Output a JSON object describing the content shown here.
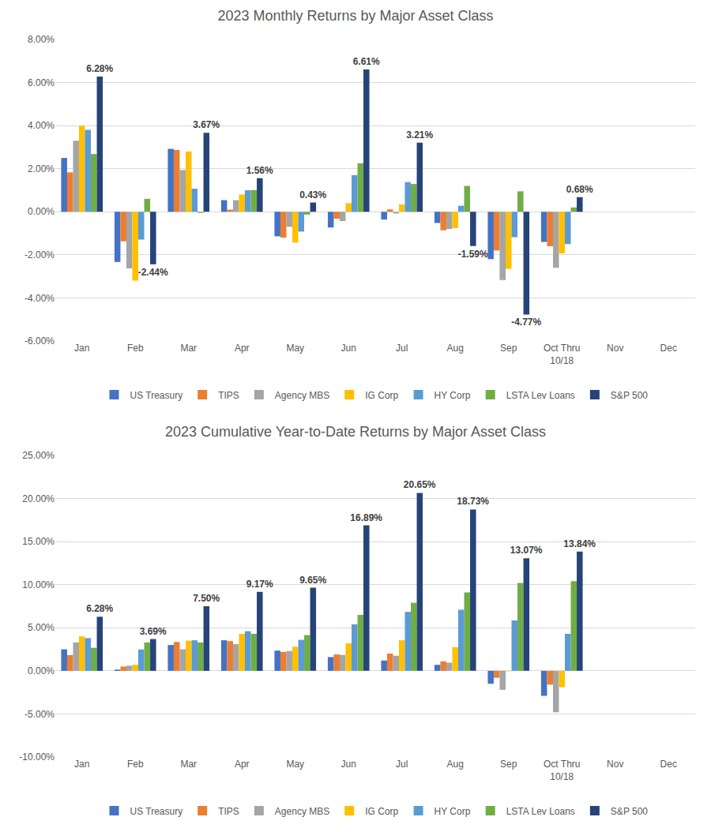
{
  "chart_data": [
    {
      "type": "bar",
      "title": "2023 Monthly Returns by Major Asset Class",
      "categories": [
        "Jan",
        "Feb",
        "Mar",
        "Apr",
        "May",
        "Jun",
        "Jul",
        "Aug",
        "Sep",
        "Oct Thru\n10/18",
        "Nov",
        "Dec"
      ],
      "ylim": [
        -6,
        8
      ],
      "yticks": [
        {
          "value": -6,
          "label": "-6.00%"
        },
        {
          "value": -4,
          "label": "-4.00%"
        },
        {
          "value": -2,
          "label": "-2.00%"
        },
        {
          "value": 0,
          "label": "0.00%"
        },
        {
          "value": 2,
          "label": "2.00%"
        },
        {
          "value": 4,
          "label": "4.00%"
        },
        {
          "value": 6,
          "label": "6.00%"
        },
        {
          "value": 8,
          "label": "8.00%"
        }
      ],
      "grid": true,
      "legend": "bottom",
      "series": [
        {
          "name": "US Treasury",
          "color": "#4472C4",
          "values": [
            2.5,
            -2.33,
            2.92,
            0.54,
            -1.14,
            -0.73,
            -0.36,
            -0.52,
            -2.2,
            -1.4,
            null,
            null
          ]
        },
        {
          "name": "TIPS",
          "color": "#ED7D31",
          "values": [
            1.83,
            -1.37,
            2.87,
            0.1,
            -1.2,
            -0.32,
            0.11,
            -0.86,
            -1.8,
            -1.6,
            null,
            null
          ]
        },
        {
          "name": "Agency MBS",
          "color": "#A5A5A5",
          "values": [
            3.3,
            -2.63,
            1.94,
            0.54,
            -0.7,
            -0.43,
            -0.08,
            -0.8,
            -3.17,
            -2.6,
            null,
            null
          ]
        },
        {
          "name": "IG Corp",
          "color": "#FFC000",
          "values": [
            4.0,
            -3.2,
            2.8,
            0.8,
            -1.43,
            0.4,
            0.34,
            -0.76,
            -2.65,
            -1.93,
            null,
            null
          ]
        },
        {
          "name": "HY Corp",
          "color": "#5B9BD5",
          "values": [
            3.8,
            -1.29,
            1.07,
            1.0,
            -0.92,
            1.7,
            1.38,
            0.28,
            -1.18,
            -1.5,
            null,
            null
          ]
        },
        {
          "name": "LSTA Lev Loans",
          "color": "#70AD47",
          "values": [
            2.68,
            0.6,
            -0.05,
            1.01,
            -0.13,
            2.25,
            1.29,
            1.2,
            0.95,
            0.2,
            null,
            null
          ]
        },
        {
          "name": "S&P 500",
          "color": "#264478",
          "values": [
            6.28,
            -2.44,
            3.67,
            1.56,
            0.43,
            6.61,
            3.21,
            -1.59,
            -4.77,
            0.68,
            null,
            null
          ],
          "value_labels": [
            "6.28%",
            "-2.44%",
            "3.67%",
            "1.56%",
            "0.43%",
            "6.61%",
            "3.21%",
            "-1.59%",
            "-4.77%",
            "0.68%",
            null,
            null
          ]
        }
      ]
    },
    {
      "type": "bar",
      "title": "2023 Cumulative Year-to-Date Returns by Major Asset Class",
      "categories": [
        "Jan",
        "Feb",
        "Mar",
        "Apr",
        "May",
        "Jun",
        "Jul",
        "Aug",
        "Sep",
        "Oct Thru\n10/18",
        "Nov",
        "Dec"
      ],
      "ylim": [
        -10,
        25
      ],
      "yticks": [
        {
          "value": -10,
          "label": "-10.00%"
        },
        {
          "value": -5,
          "label": "-5.00%"
        },
        {
          "value": 0,
          "label": "0.00%"
        },
        {
          "value": 5,
          "label": "5.00%"
        },
        {
          "value": 10,
          "label": "10.00%"
        },
        {
          "value": 15,
          "label": "15.00%"
        },
        {
          "value": 20,
          "label": "20.00%"
        },
        {
          "value": 25,
          "label": "25.00%"
        }
      ],
      "grid": true,
      "legend": "bottom",
      "series": [
        {
          "name": "US Treasury",
          "color": "#4472C4",
          "values": [
            2.5,
            0.15,
            3.0,
            3.55,
            2.35,
            1.6,
            1.2,
            0.7,
            -1.5,
            -2.9,
            null,
            null
          ]
        },
        {
          "name": "TIPS",
          "color": "#ED7D31",
          "values": [
            1.83,
            0.5,
            3.35,
            3.45,
            2.2,
            1.9,
            2.0,
            1.1,
            -0.8,
            -1.6,
            null,
            null
          ]
        },
        {
          "name": "Agency MBS",
          "color": "#A5A5A5",
          "values": [
            3.3,
            0.6,
            2.5,
            3.1,
            2.3,
            1.85,
            1.75,
            0.95,
            -2.2,
            -4.8,
            null,
            null
          ]
        },
        {
          "name": "IG Corp",
          "color": "#FFC000",
          "values": [
            4.0,
            0.7,
            3.5,
            4.3,
            2.8,
            3.2,
            3.55,
            2.75,
            -0.05,
            -1.9,
            null,
            null
          ]
        },
        {
          "name": "HY Corp",
          "color": "#5B9BD5",
          "values": [
            3.8,
            2.48,
            3.55,
            4.6,
            3.6,
            5.4,
            6.85,
            7.1,
            5.85,
            4.3,
            null,
            null
          ]
        },
        {
          "name": "LSTA Lev Loans",
          "color": "#70AD47",
          "values": [
            2.68,
            3.3,
            3.3,
            4.3,
            4.15,
            6.5,
            7.9,
            9.1,
            10.2,
            10.4,
            null,
            null
          ]
        },
        {
          "name": "S&P 500",
          "color": "#264478",
          "values": [
            6.28,
            3.69,
            7.5,
            9.17,
            9.65,
            16.89,
            20.65,
            18.73,
            13.07,
            13.84,
            null,
            null
          ],
          "value_labels": [
            "6.28%",
            "3.69%",
            "7.50%",
            "9.17%",
            "9.65%",
            "16.89%",
            "20.65%",
            "18.73%",
            "13.07%",
            "13.84%",
            null,
            null
          ]
        }
      ]
    }
  ]
}
